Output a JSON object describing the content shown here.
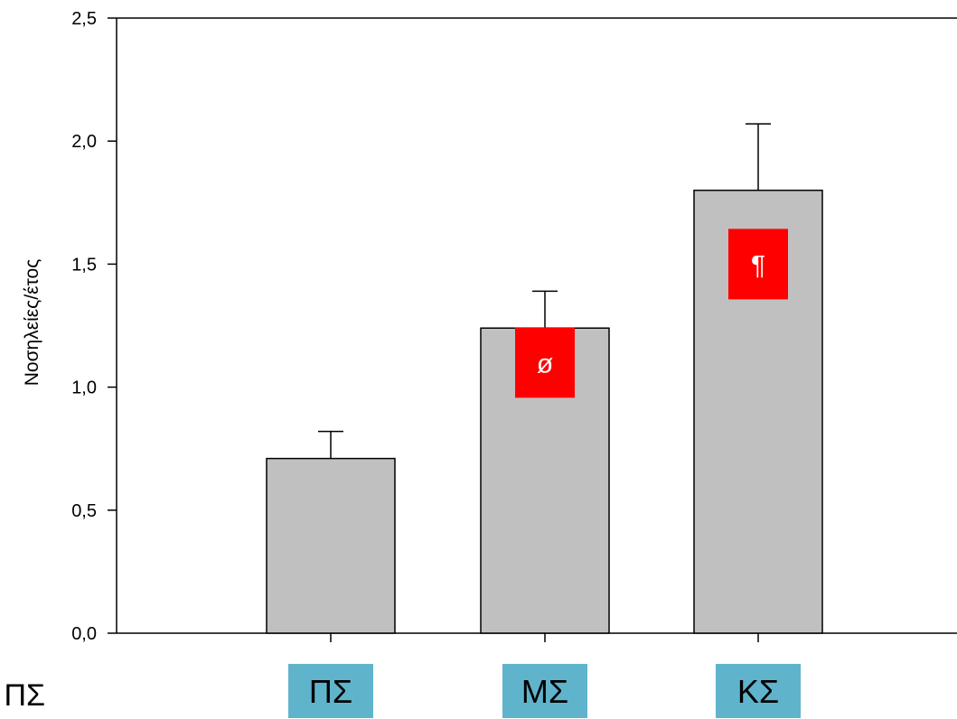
{
  "chart_data": {
    "type": "bar",
    "title": "",
    "xlabel": "",
    "ylabel": "Νοσηλείες/έτος",
    "categories": [
      "ΠΣ",
      "ΜΣ",
      "ΚΣ"
    ],
    "values": [
      0.71,
      1.24,
      1.8
    ],
    "error_upper": [
      0.82,
      1.39,
      2.07
    ],
    "ylim": [
      0,
      2.5
    ],
    "yticks": [
      "0,0",
      "0,5",
      "1,0",
      "1,5",
      "2,0",
      "2,5"
    ],
    "yticks_values": [
      0,
      0.5,
      1.0,
      1.5,
      2.0,
      2.5
    ],
    "grid": false,
    "markers": [
      {
        "category_index": 1,
        "symbol": "ø",
        "center_value": 1.1
      },
      {
        "category_index": 2,
        "symbol": "¶",
        "center_value": 1.5
      }
    ],
    "colors": {
      "bar_fill": "#c0c0c0",
      "bar_stroke": "#000000",
      "marker_bg": "#ff0000",
      "category_box": "#5fb4cc"
    }
  },
  "cropped_label": "s ΠΣ"
}
